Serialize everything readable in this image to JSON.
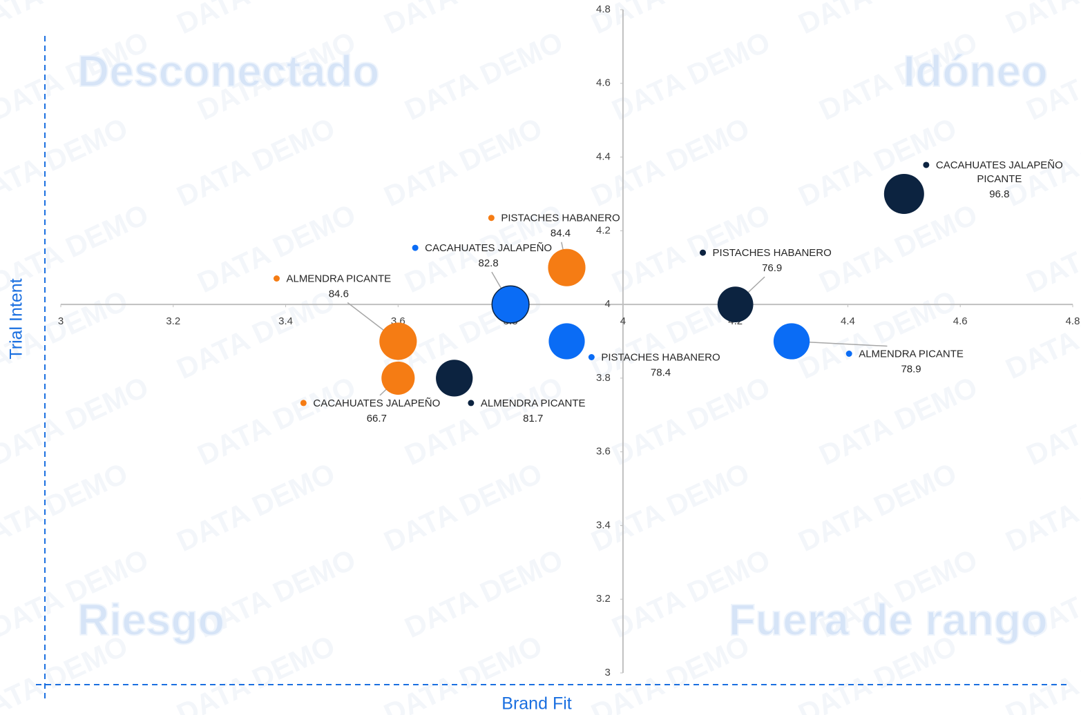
{
  "chart_data": {
    "type": "bubble",
    "xlabel": "Brand Fit",
    "ylabel": "Trial Intent",
    "watermark": "DATA DEMO",
    "quadrants": [
      "Desconectado",
      "Idóneo",
      "Riesgo",
      "Fuera de rango"
    ],
    "xlim": [
      3,
      4.8
    ],
    "ylim": [
      3,
      4.8
    ],
    "xticks": [
      3,
      3.2,
      3.4,
      3.6,
      3.8,
      4,
      4.2,
      4.4,
      4.6,
      4.8
    ],
    "yticks": [
      3,
      3.2,
      3.4,
      3.6,
      3.8,
      4,
      4.2,
      4.4,
      4.6,
      4.8
    ],
    "x_cross": 4,
    "y_cross": 4,
    "series": [
      {
        "color": "#f57c14",
        "points": [
          {
            "x": 3.6,
            "y": 3.9,
            "size": 84.6,
            "label": [
              "ALMENDRA PICANTE"
            ]
          },
          {
            "x": 3.6,
            "y": 3.8,
            "size": 66.7,
            "label": [
              "CACAHUATES JALAPEÑO"
            ]
          },
          {
            "x": 3.9,
            "y": 4.1,
            "size": 84.4,
            "label": [
              "PISTACHES HABANERO"
            ]
          }
        ]
      },
      {
        "color": "#0c2340",
        "points": [
          {
            "x": 3.7,
            "y": 3.8,
            "size": 81.7,
            "label": [
              "ALMENDRA PICANTE"
            ]
          },
          {
            "x": 4.2,
            "y": 4.0,
            "size": 76.9,
            "label": [
              "PISTACHES HABANERO"
            ]
          },
          {
            "x": 4.5,
            "y": 4.3,
            "size": 96.8,
            "label": [
              "CACAHUATES JALAPEÑO",
              "PICANTE"
            ]
          }
        ]
      },
      {
        "color": "#0a6cf5",
        "points": [
          {
            "x": 3.8,
            "y": 4.0,
            "size": 82.8,
            "label": [
              "CACAHUATES JALAPEÑO"
            ]
          },
          {
            "x": 3.9,
            "y": 3.9,
            "size": 78.4,
            "label": [
              "PISTACHES HABANERO"
            ]
          },
          {
            "x": 4.3,
            "y": 3.9,
            "size": 78.9,
            "label": [
              "ALMENDRA PICANTE"
            ]
          }
        ]
      }
    ]
  }
}
